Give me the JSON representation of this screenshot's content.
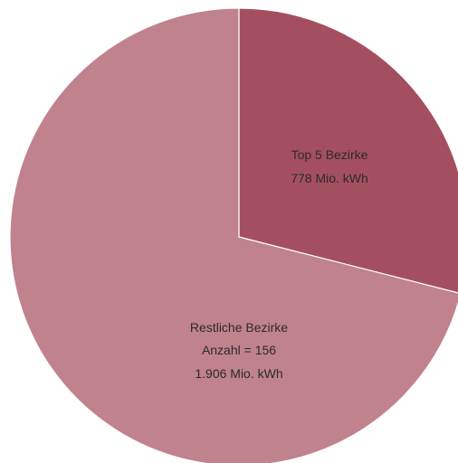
{
  "chart_data": {
    "type": "pie",
    "title": "",
    "slices": [
      {
        "name": "Top 5 Bezirke",
        "value": 778,
        "color": "#a44f5f",
        "label_lines": [
          "Top 5 Bezirke",
          "778 Mio. kWh"
        ]
      },
      {
        "name": "Restliche Bezirke",
        "value": 1906,
        "color": "#c0828d",
        "label_lines": [
          "Restliche Bezirke",
          "Anzahl = 156",
          "1.906 Mio. kWh"
        ]
      }
    ],
    "unit": "Mio. kWh",
    "start_angle": "12 o'clock",
    "direction": "clockwise",
    "legend": "none"
  }
}
